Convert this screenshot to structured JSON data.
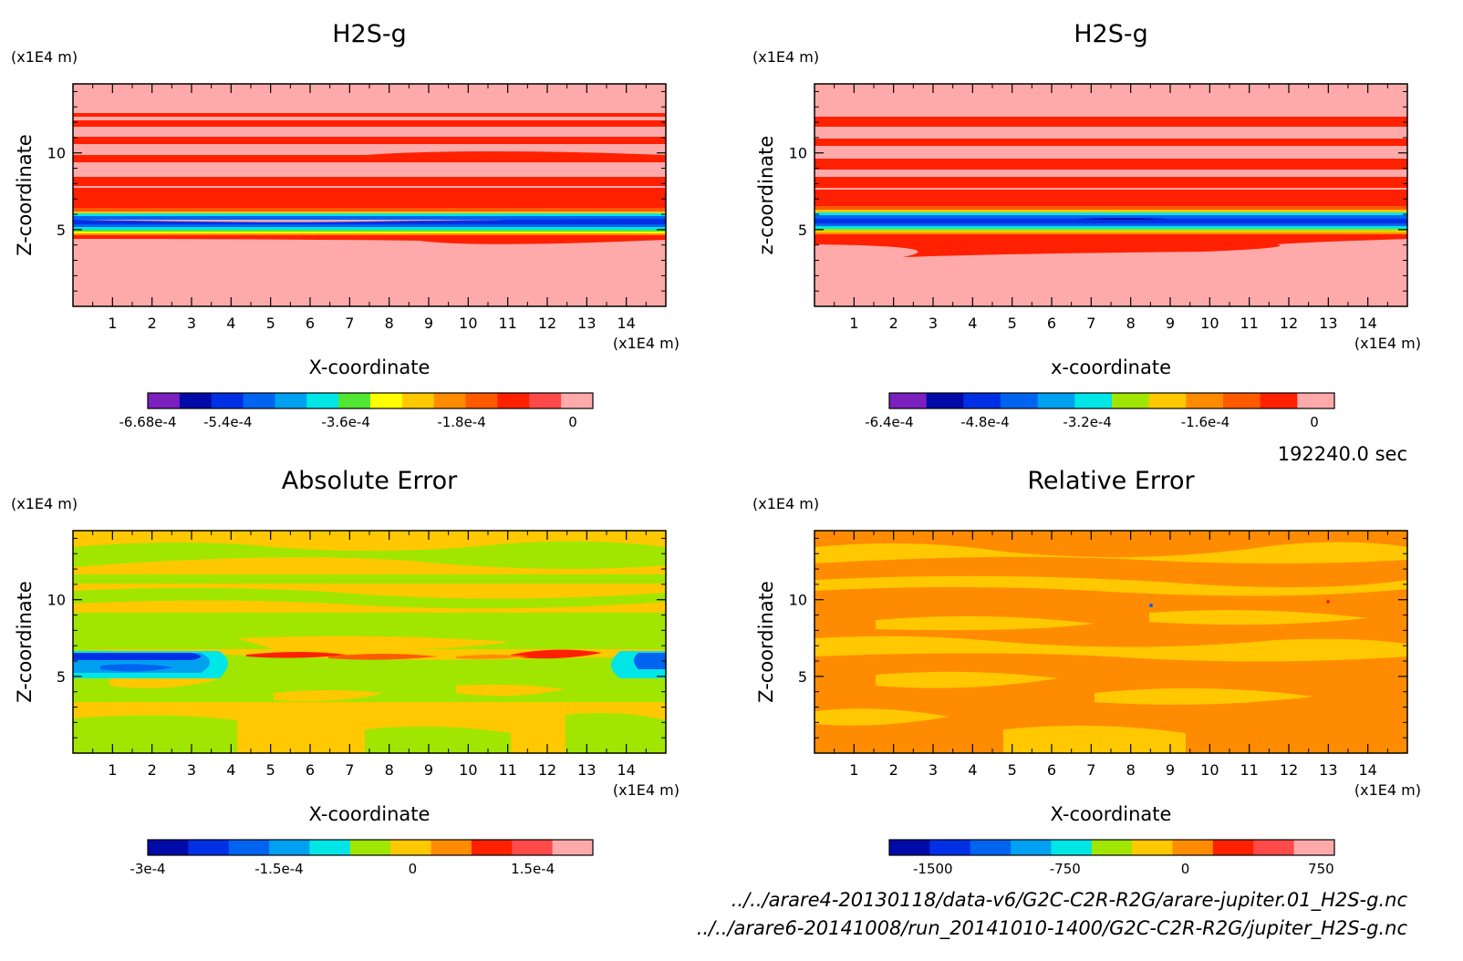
{
  "chart_data": [
    {
      "type": "heatmap",
      "title": "H2S-g",
      "xlabel": "X-coordinate",
      "ylabel": "Z-coordinate",
      "x_unit": "(x1E4 m)",
      "y_unit": "(x1E4 m)",
      "xlim": [
        0,
        15
      ],
      "ylim": [
        0,
        14.5
      ],
      "xticks": [
        1,
        2,
        3,
        4,
        5,
        6,
        7,
        8,
        9,
        10,
        11,
        12,
        13,
        14
      ],
      "yticks": [
        5,
        10
      ],
      "colorbar": {
        "colors": [
          "#7b1fbf",
          "#000aa8",
          "#0030e6",
          "#0064f0",
          "#00a0f0",
          "#00e6e6",
          "#50e632",
          "#ffff00",
          "#ffc800",
          "#ff8c00",
          "#ff5a00",
          "#ff2000",
          "#ff4a4a",
          "#ffaaaa"
        ],
        "ticks": [
          "-6.68e-4",
          "-5.4e-4",
          "-3.6e-4",
          "-1.8e-4",
          "0"
        ]
      }
    },
    {
      "type": "heatmap",
      "title": "H2S-g",
      "xlabel": "x-coordinate",
      "ylabel": "z-coordinate",
      "x_unit": "(x1E4 m)",
      "y_unit": "(x1E4 m)",
      "xlim": [
        0,
        15
      ],
      "ylim": [
        0,
        14.5
      ],
      "xticks": [
        1,
        2,
        3,
        4,
        5,
        6,
        7,
        8,
        9,
        10,
        11,
        12,
        13,
        14
      ],
      "yticks": [
        5,
        10
      ],
      "colorbar": {
        "colors": [
          "#7b1fbf",
          "#000aa8",
          "#0030e6",
          "#0064f0",
          "#00a0f0",
          "#00e6e6",
          "#a0e600",
          "#ffc800",
          "#ff8c00",
          "#ff5a00",
          "#ff2000",
          "#ffaaaa"
        ],
        "ticks": [
          "-6.4e-4",
          "-4.8e-4",
          "-3.2e-4",
          "-1.6e-4",
          "0"
        ]
      }
    },
    {
      "type": "heatmap",
      "title": "Absolute Error",
      "xlabel": "X-coordinate",
      "ylabel": "Z-coordinate",
      "x_unit": "(x1E4 m)",
      "y_unit": "(x1E4 m)",
      "xlim": [
        0,
        15
      ],
      "ylim": [
        0,
        14.5
      ],
      "xticks": [
        1,
        2,
        3,
        4,
        5,
        6,
        7,
        8,
        9,
        10,
        11,
        12,
        13,
        14
      ],
      "yticks": [
        5,
        10
      ],
      "colorbar": {
        "colors": [
          "#000aa8",
          "#0030e6",
          "#0064f0",
          "#00a0f0",
          "#00e6e6",
          "#a0e600",
          "#ffc800",
          "#ff8c00",
          "#ff2000",
          "#ff4a4a",
          "#ffaaaa"
        ],
        "ticks": [
          "-3e-4",
          "-1.5e-4",
          "0",
          "1.5e-4"
        ]
      }
    },
    {
      "type": "heatmap",
      "title": "Relative Error",
      "xlabel": "X-coordinate",
      "ylabel": "Z-coordinate",
      "x_unit": "(x1E4 m)",
      "y_unit": "(x1E4 m)",
      "xlim": [
        0,
        15
      ],
      "ylim": [
        0,
        14.5
      ],
      "xticks": [
        1,
        2,
        3,
        4,
        5,
        6,
        7,
        8,
        9,
        10,
        11,
        12,
        13,
        14
      ],
      "yticks": [
        5,
        10
      ],
      "colorbar": {
        "colors": [
          "#000aa8",
          "#0030e6",
          "#0064f0",
          "#00a0f0",
          "#00e6e6",
          "#a0e600",
          "#ffc800",
          "#ff8c00",
          "#ff2000",
          "#ff4a4a",
          "#ffaaaa"
        ],
        "ticks": [
          "-1500",
          "-750",
          "0",
          "750"
        ]
      }
    }
  ],
  "time_label": "192240.0 sec",
  "file_paths": [
    "../../arare4-20130118/data-v6/G2C-C2R-R2G/arare-jupiter.01_H2S-g.nc",
    "../../arare6-20141008/run_20141010-1400/G2C-C2R-R2G/jupiter_H2S-g.nc"
  ]
}
